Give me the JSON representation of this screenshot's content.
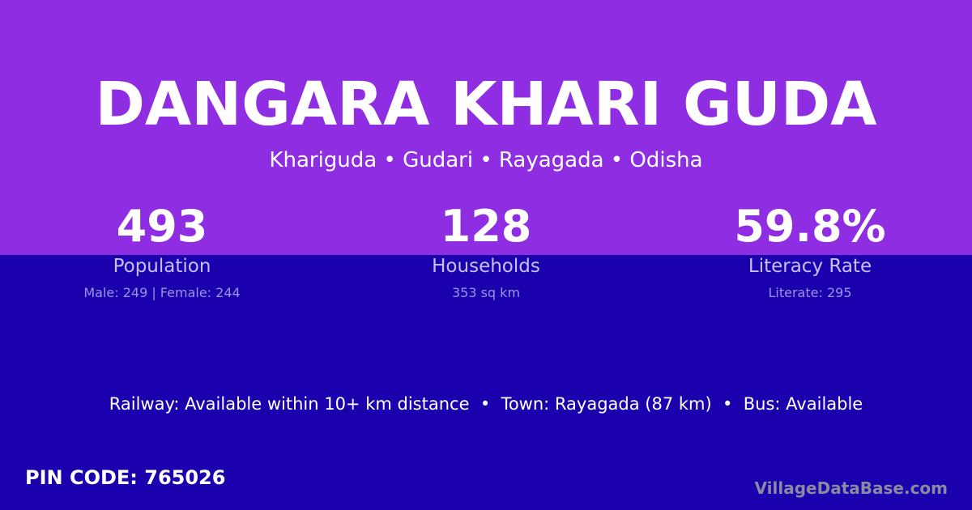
{
  "title": "DANGARA KHARI GUDA",
  "subtitle": "Khariguda • Gudari • Rayagada • Odisha",
  "stats": [
    {
      "value": "493",
      "label": "Population",
      "detail": "Male: 249 | Female: 244"
    },
    {
      "value": "128",
      "label": "Households",
      "detail": "353 sq km"
    },
    {
      "value": "59.8%",
      "label": "Literacy Rate",
      "detail": "Literate: 295"
    }
  ],
  "facts": "Railway: Available within 10+ km distance  •  Town: Rayagada (87 km)  •  Bus: Available",
  "pin": "PIN CODE: 765026",
  "brand": "VillageDataBase.com",
  "colors": {
    "top": "#8e2de2",
    "bottom": "#1b00ae"
  }
}
